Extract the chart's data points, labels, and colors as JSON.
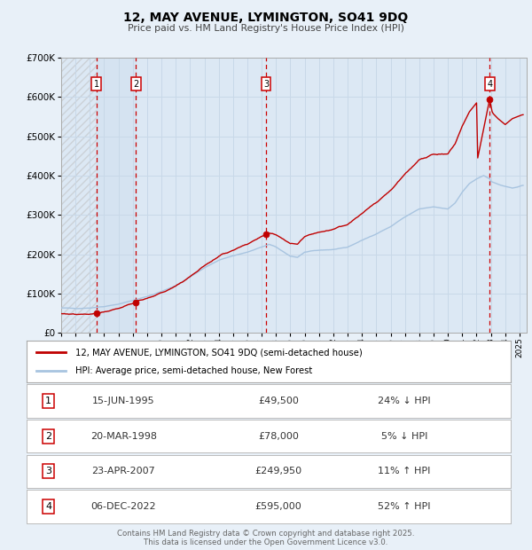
{
  "title": "12, MAY AVENUE, LYMINGTON, SO41 9DQ",
  "subtitle": "Price paid vs. HM Land Registry's House Price Index (HPI)",
  "legend_line1": "12, MAY AVENUE, LYMINGTON, SO41 9DQ (semi-detached house)",
  "legend_line2": "HPI: Average price, semi-detached house, New Forest",
  "footer1": "Contains HM Land Registry data © Crown copyright and database right 2025.",
  "footer2": "This data is licensed under the Open Government Licence v3.0.",
  "transactions": [
    {
      "num": 1,
      "date": "15-JUN-1995",
      "price": 49500,
      "price_str": "£49,500",
      "rel": "24% ↓ HPI",
      "x_year": 1995.45
    },
    {
      "num": 2,
      "date": "20-MAR-1998",
      "price": 78000,
      "price_str": "£78,000",
      "rel": "5% ↓ HPI",
      "x_year": 1998.22
    },
    {
      "num": 3,
      "date": "23-APR-2007",
      "price": 249950,
      "price_str": "£249,950",
      "rel": "11% ↑ HPI",
      "x_year": 2007.31
    },
    {
      "num": 4,
      "date": "06-DEC-2022",
      "price": 595000,
      "price_str": "£595,000",
      "rel": "52% ↑ HPI",
      "x_year": 2022.92
    }
  ],
  "hpi_color": "#a8c4e0",
  "price_color": "#c00000",
  "marker_color": "#c00000",
  "vline_color": "#cc0000",
  "grid_color": "#c8d8e8",
  "bg_color": "#e8f0f8",
  "plot_bg": "#dce8f4",
  "shaded_bg": "#dce8f4",
  "xmin": 1993.0,
  "xmax": 2025.5,
  "ymin": 0,
  "ymax": 700000,
  "yticks": [
    0,
    100000,
    200000,
    300000,
    400000,
    500000,
    600000,
    700000
  ],
  "hpi_anchors_x": [
    1993.0,
    1994.0,
    1995.0,
    1996.0,
    1997.0,
    1998.0,
    1999.0,
    2000.0,
    2001.0,
    2002.0,
    2003.0,
    2004.0,
    2005.0,
    2006.0,
    2007.0,
    2007.5,
    2008.0,
    2009.0,
    2009.5,
    2010.0,
    2011.0,
    2012.0,
    2013.0,
    2014.0,
    2015.0,
    2016.0,
    2017.0,
    2018.0,
    2019.0,
    2020.0,
    2020.5,
    2021.0,
    2021.5,
    2022.0,
    2022.5,
    2022.92,
    2023.0,
    2023.5,
    2024.0,
    2024.5,
    2025.2
  ],
  "hpi_anchors_y": [
    63000,
    62000,
    63000,
    67000,
    73000,
    82000,
    92000,
    105000,
    120000,
    142000,
    165000,
    185000,
    196000,
    205000,
    218000,
    225000,
    218000,
    195000,
    192000,
    205000,
    210000,
    212000,
    218000,
    235000,
    252000,
    270000,
    295000,
    315000,
    320000,
    315000,
    330000,
    358000,
    380000,
    392000,
    400000,
    392000,
    385000,
    378000,
    372000,
    368000,
    375000
  ],
  "price_anchors_x": [
    1995.45,
    1998.22,
    2007.31,
    2022.0,
    2022.92,
    2023.1,
    2023.5,
    2024.0,
    2024.5,
    2025.2
  ],
  "price_anchors_y": [
    49500,
    78000,
    249950,
    430000,
    595000,
    560000,
    545000,
    530000,
    545000,
    555000
  ]
}
